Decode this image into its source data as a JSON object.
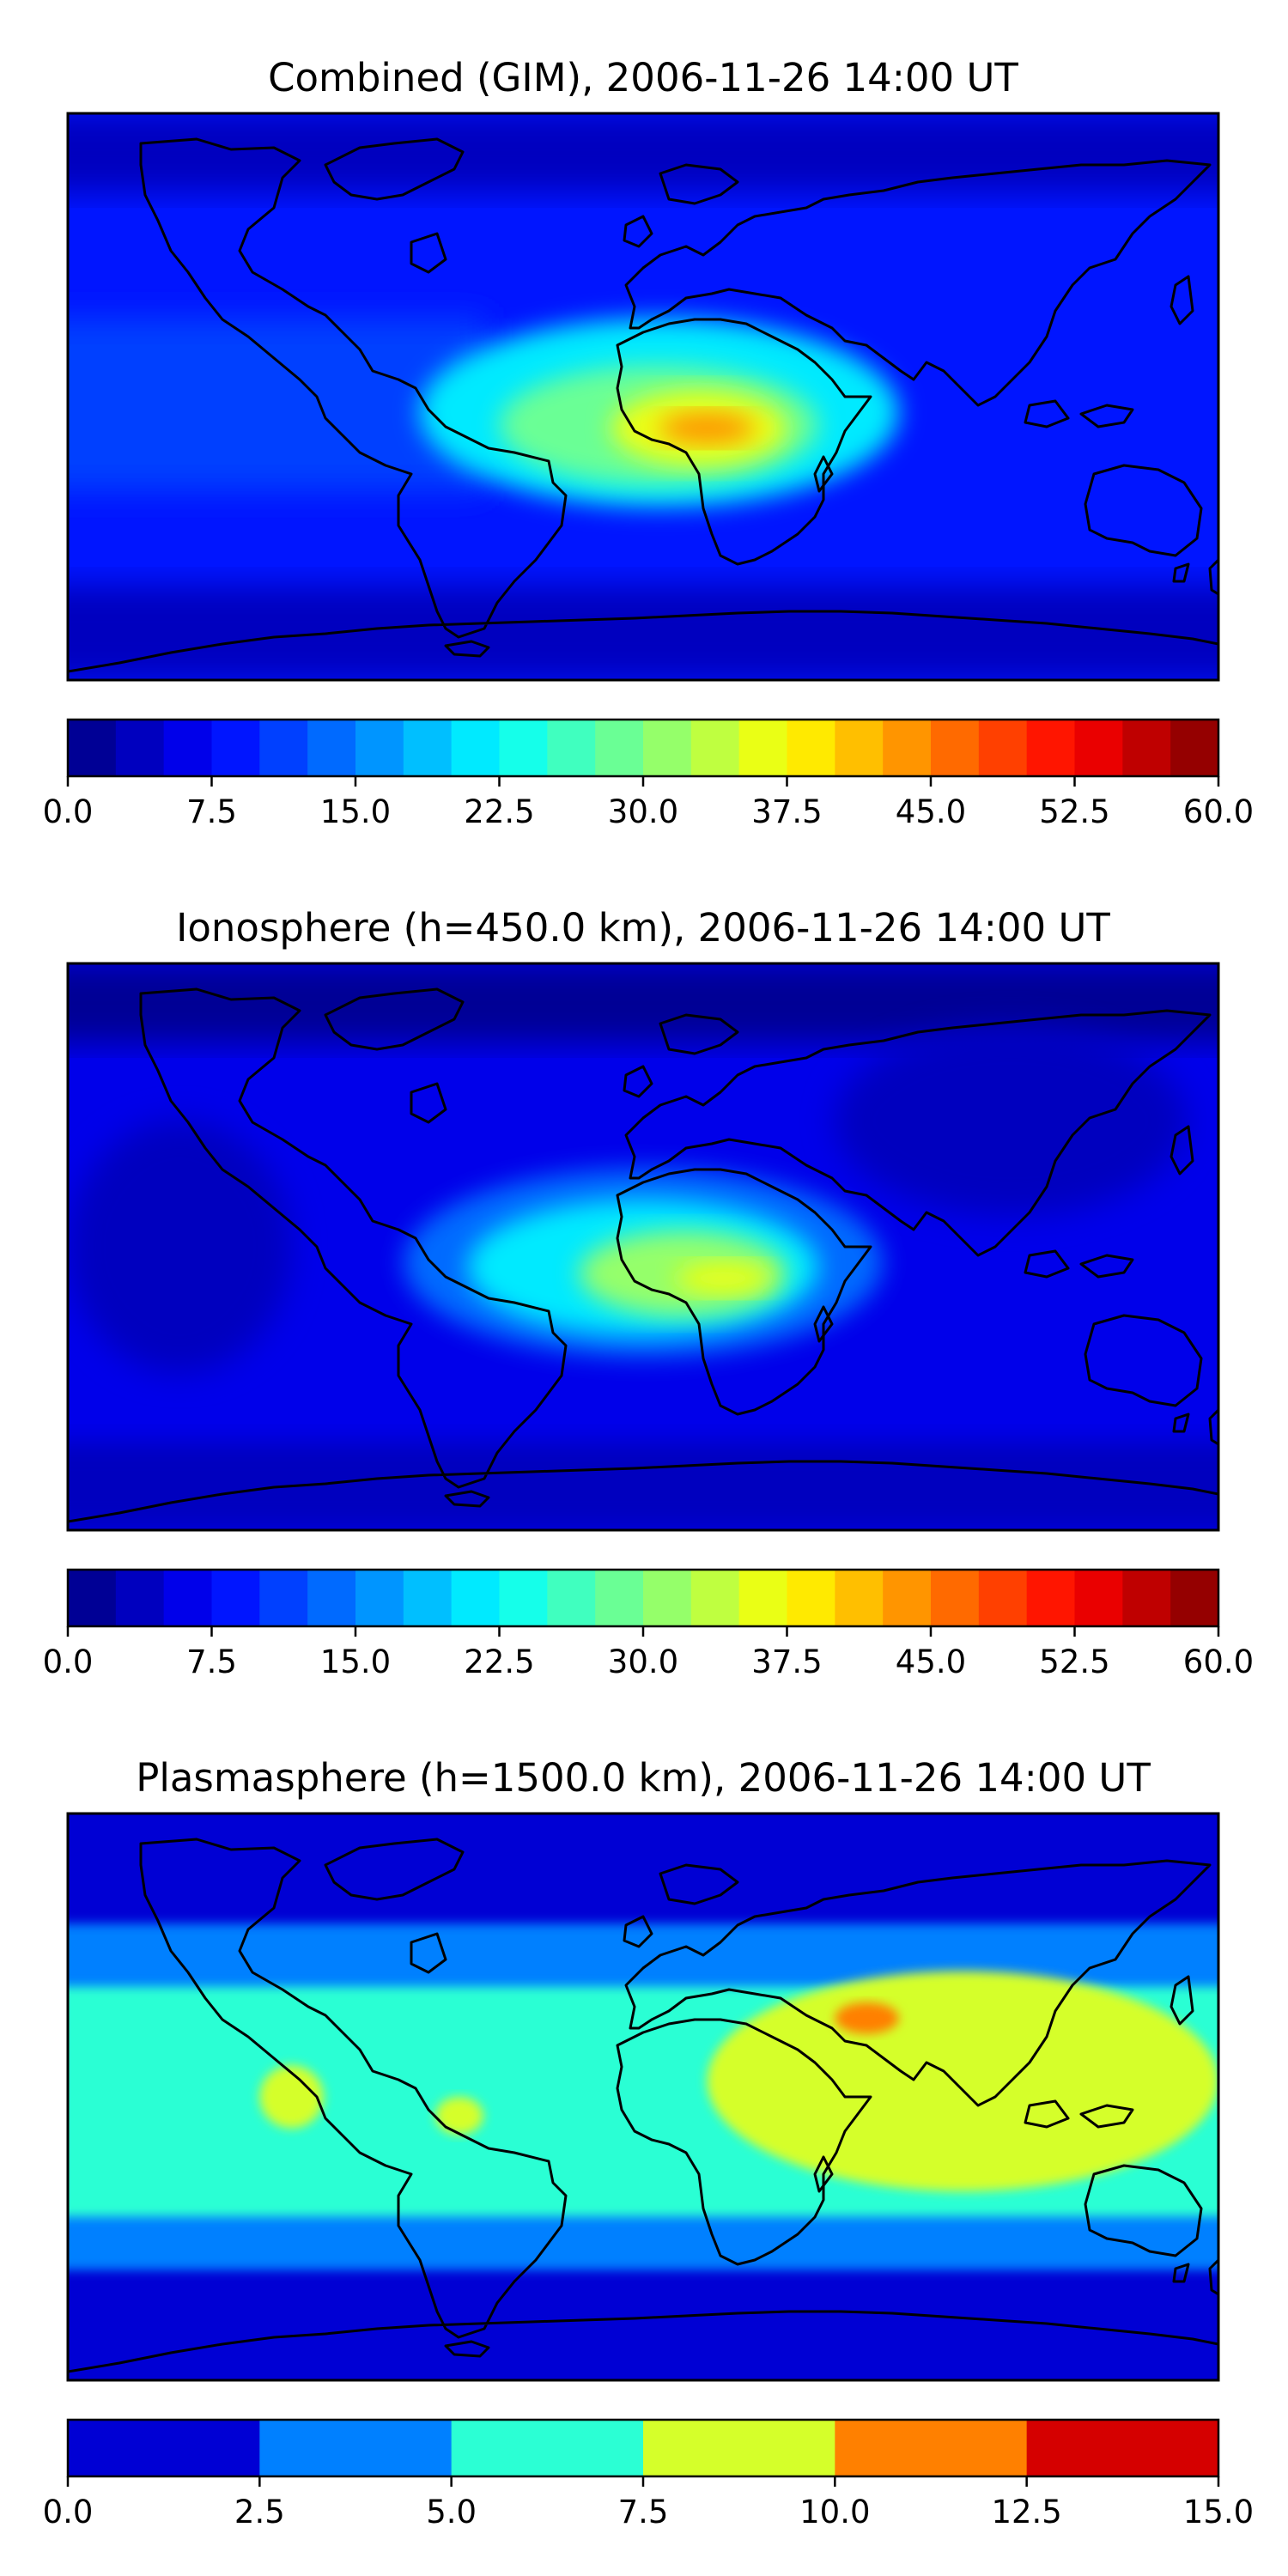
{
  "chart_data": [
    {
      "type": "heatmap",
      "title": "Combined (GIM), 2006-11-26 14:00 UT",
      "map": "world-equirectangular",
      "colorbar": {
        "min": 0,
        "max": 60,
        "step": 2.5,
        "tick_labels": [
          "0.0",
          "7.5",
          "15.0",
          "22.5",
          "30.0",
          "37.5",
          "45.0",
          "52.5",
          "60.0"
        ],
        "colormap": "jet"
      },
      "background_value": 7.5,
      "features": [
        {
          "name": "polar-cap-north",
          "lon": [
            -180,
            180
          ],
          "lat": [
            65,
            90
          ],
          "value": 3.5
        },
        {
          "name": "polar-cap-south",
          "lon": [
            -180,
            180
          ],
          "lat": [
            -90,
            -60
          ],
          "value": 4
        },
        {
          "name": "pacific-band",
          "lon": [
            -180,
            -60
          ],
          "lat": [
            -30,
            25
          ],
          "value": 11
        },
        {
          "name": "ionization-crest",
          "lon": [
            -70,
            80
          ],
          "lat": [
            -35,
            25
          ],
          "value": 20
        },
        {
          "name": "ionization-crest-core",
          "lon": [
            -45,
            55
          ],
          "lat": [
            -28,
            10
          ],
          "value": 28
        },
        {
          "name": "ionization-peak",
          "lon": [
            -10,
            45
          ],
          "lat": [
            -22,
            2
          ],
          "value": 36
        },
        {
          "name": "ionization-max",
          "lon": [
            5,
            35
          ],
          "lat": [
            -15,
            -5
          ],
          "value": 43
        }
      ]
    },
    {
      "type": "heatmap",
      "title": "Ionosphere  (h=450.0 km), 2006-11-26 14:00 UT",
      "map": "world-equirectangular",
      "colorbar": {
        "min": 0,
        "max": 60,
        "step": 2.5,
        "tick_labels": [
          "0.0",
          "7.5",
          "15.0",
          "22.5",
          "30.0",
          "37.5",
          "45.0",
          "52.5",
          "60.0"
        ],
        "colormap": "jet"
      },
      "background_value": 5,
      "features": [
        {
          "name": "polar-cap-north",
          "lon": [
            -180,
            180
          ],
          "lat": [
            65,
            90
          ],
          "value": 2
        },
        {
          "name": "dark-pacific",
          "lon": [
            -180,
            -110
          ],
          "lat": [
            -40,
            40
          ],
          "value": 2.5
        },
        {
          "name": "dark-asia",
          "lon": [
            60,
            170
          ],
          "lat": [
            10,
            70
          ],
          "value": 2.5
        },
        {
          "name": "polar-cap-south",
          "lon": [
            -180,
            180
          ],
          "lat": [
            -90,
            -62
          ],
          "value": 3
        },
        {
          "name": "ionization-crest",
          "lon": [
            -75,
            75
          ],
          "lat": [
            -35,
            25
          ],
          "value": 14
        },
        {
          "name": "ionization-crest-core",
          "lon": [
            -55,
            55
          ],
          "lat": [
            -28,
            15
          ],
          "value": 22
        },
        {
          "name": "ionization-peak",
          "lon": [
            -20,
            45
          ],
          "lat": [
            -22,
            5
          ],
          "value": 30
        },
        {
          "name": "ionization-max",
          "lon": [
            10,
            40
          ],
          "lat": [
            -15,
            -5
          ],
          "value": 36
        }
      ]
    },
    {
      "type": "heatmap",
      "title": "Plasmasphere (h=1500.0 km), 2006-11-26 14:00 UT",
      "map": "world-equirectangular",
      "colorbar": {
        "min": 0,
        "max": 15,
        "step": 2.5,
        "tick_labels": [
          "0.0",
          "2.5",
          "5.0",
          "7.5",
          "10.0",
          "12.5",
          "15.0"
        ],
        "colormap": "jet"
      },
      "background_value": 1.5,
      "features": [
        {
          "name": "mid-latitude-band",
          "lon": [
            -180,
            180
          ],
          "lat": [
            -55,
            55
          ],
          "value": 3.5
        },
        {
          "name": "equatorial-band",
          "lon": [
            -180,
            180
          ],
          "lat": [
            -38,
            35
          ],
          "value": 6
        },
        {
          "name": "asia-enhancement",
          "lon": [
            20,
            180
          ],
          "lat": [
            -30,
            40
          ],
          "value": 8.5
        },
        {
          "name": "pacific-patch",
          "lon": [
            -120,
            -100
          ],
          "lat": [
            -10,
            10
          ],
          "value": 8.5
        },
        {
          "name": "amazon-patch",
          "lon": [
            -65,
            -50
          ],
          "lat": [
            -12,
            0
          ],
          "value": 8.5
        },
        {
          "name": "peak-south-asia",
          "lon": [
            60,
            80
          ],
          "lat": [
            20,
            30
          ],
          "value": 11
        }
      ]
    }
  ]
}
